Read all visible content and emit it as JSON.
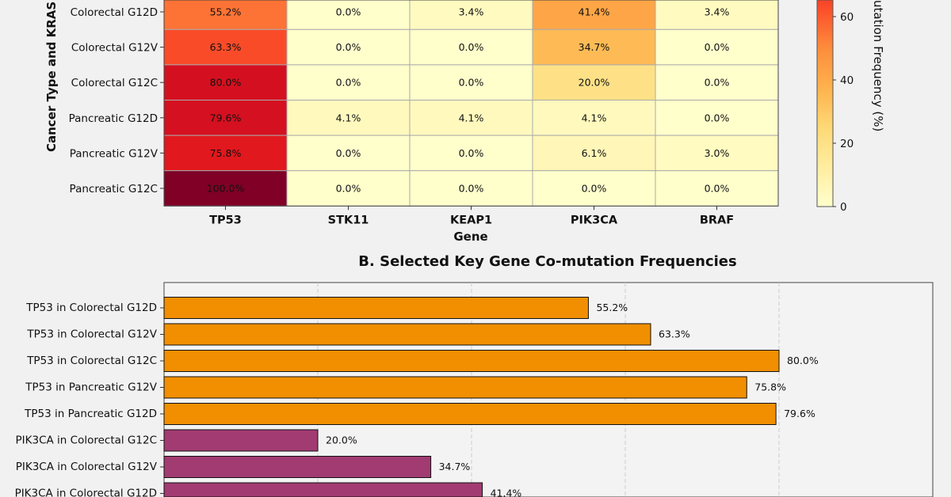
{
  "chart_data": [
    {
      "type": "heatmap",
      "title": "",
      "xlabel": "Gene",
      "ylabel": "Cancer Type and KRAS",
      "colormap": "YlOrRd",
      "colorbar": {
        "label": "utation Frequency (%)",
        "range": [
          0,
          100
        ],
        "ticks": [
          0,
          20,
          40,
          60
        ]
      },
      "columns": [
        "TP53",
        "STK11",
        "KEAP1",
        "PIK3CA",
        "BRAF"
      ],
      "rows": [
        "Colorectal G12D",
        "Colorectal G12V",
        "Colorectal G12C",
        "Pancreatic G12D",
        "Pancreatic G12V",
        "Pancreatic G12C"
      ],
      "values": [
        [
          55.2,
          0.0,
          3.4,
          41.4,
          3.4
        ],
        [
          63.3,
          0.0,
          0.0,
          34.7,
          0.0
        ],
        [
          80.0,
          0.0,
          0.0,
          20.0,
          0.0
        ],
        [
          79.6,
          4.1,
          4.1,
          4.1,
          0.0
        ],
        [
          75.8,
          0.0,
          0.0,
          6.1,
          3.0
        ],
        [
          100.0,
          0.0,
          0.0,
          0.0,
          0.0
        ]
      ],
      "labels": [
        [
          "55.2%",
          "0.0%",
          "3.4%",
          "41.4%",
          "3.4%"
        ],
        [
          "63.3%",
          "0.0%",
          "0.0%",
          "34.7%",
          "0.0%"
        ],
        [
          "80.0%",
          "0.0%",
          "0.0%",
          "20.0%",
          "0.0%"
        ],
        [
          "79.6%",
          "4.1%",
          "4.1%",
          "4.1%",
          "0.0%"
        ],
        [
          "75.8%",
          "0.0%",
          "0.0%",
          "6.1%",
          "3.0%"
        ],
        [
          "100.0%",
          "0.0%",
          "0.0%",
          "0.0%",
          "0.0%"
        ]
      ]
    },
    {
      "type": "bar",
      "orientation": "horizontal",
      "title": "B. Selected Key Gene Co-mutation Frequencies",
      "xlim": [
        0,
        100
      ],
      "grid": "x, dashed",
      "categories": [
        "TP53 in Colorectal G12D",
        "TP53 in Colorectal G12V",
        "TP53 in Colorectal G12C",
        "TP53 in Pancreatic G12V",
        "TP53 in Pancreatic G12D",
        "PIK3CA in Colorectal G12C",
        "PIK3CA in Colorectal G12V",
        "PIK3CA in Colorectal G12D"
      ],
      "values": [
        55.2,
        63.3,
        80.0,
        75.8,
        79.6,
        20.0,
        34.7,
        41.4
      ],
      "value_labels": [
        "55.2%",
        "63.3%",
        "80.0%",
        "75.8%",
        "79.6%",
        "20.0%",
        "34.7%",
        "41.4%"
      ],
      "colors": [
        "#F18F01",
        "#F18F01",
        "#F18F01",
        "#F18F01",
        "#F18F01",
        "#A23B72",
        "#A23B72",
        "#A23B72"
      ]
    }
  ]
}
